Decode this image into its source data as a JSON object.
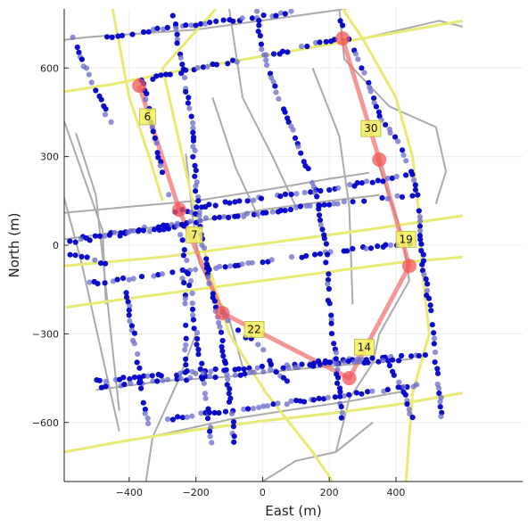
{
  "chart_data": {
    "type": "scatter",
    "title": "",
    "xlabel": "East (m)",
    "ylabel": "North (m)",
    "xlim": [
      -595,
      780
    ],
    "ylim": [
      -800,
      800
    ],
    "xticks": [
      -400,
      -200,
      0,
      200,
      400
    ],
    "yticks": [
      -600,
      -300,
      0,
      300,
      600
    ],
    "xtick_labels": [
      "−400",
      "−200",
      "0",
      "200",
      "400"
    ],
    "ytick_labels": [
      "−600",
      "−300",
      "0",
      "300",
      "600"
    ],
    "grid": true,
    "legend": "none",
    "colors": {
      "gray_road": "#aaaaaa",
      "yellow_road": "#e9ea73",
      "route": "#f26b6b",
      "waypoint": "#f25555",
      "point_dark": "#0000c8",
      "point_light": "#6a6ac8",
      "label_box": "#f5f05a"
    },
    "gray_roads": [
      [
        [
          -595,
          695
        ],
        [
          -520,
          705
        ],
        [
          -200,
          730
        ],
        [
          250,
          800
        ]
      ],
      [
        [
          -595,
          110
        ],
        [
          -400,
          130
        ],
        [
          -200,
          150
        ],
        [
          50,
          195
        ],
        [
          200,
          225
        ],
        [
          320,
          245
        ]
      ],
      [
        [
          -595,
          20
        ],
        [
          -400,
          50
        ],
        [
          -200,
          80
        ],
        [
          0,
          120
        ],
        [
          200,
          150
        ],
        [
          350,
          170
        ]
      ],
      [
        [
          -500,
          -490
        ],
        [
          -300,
          -460
        ],
        [
          -100,
          -445
        ],
        [
          100,
          -420
        ],
        [
          300,
          -400
        ],
        [
          450,
          -385
        ]
      ],
      [
        [
          -595,
          -700
        ],
        [
          -300,
          -640
        ],
        [
          -100,
          -590
        ],
        [
          100,
          -555
        ],
        [
          250,
          -530
        ],
        [
          420,
          -495
        ]
      ],
      [
        [
          -595,
          420
        ],
        [
          -480,
          50
        ],
        [
          -470,
          -200
        ]
      ],
      [
        [
          -560,
          380
        ],
        [
          -500,
          170
        ],
        [
          -430,
          -560
        ]
      ],
      [
        [
          -600,
          180
        ],
        [
          -545,
          -50
        ],
        [
          -430,
          -630
        ]
      ],
      [
        [
          -230,
          310
        ],
        [
          -210,
          100
        ],
        [
          -190,
          -60
        ],
        [
          -100,
          -250
        ],
        [
          -50,
          -450
        ]
      ],
      [
        [
          -100,
          800
        ],
        [
          -60,
          500
        ],
        [
          30,
          300
        ],
        [
          100,
          130
        ]
      ],
      [
        [
          0,
          -800
        ],
        [
          100,
          -730
        ],
        [
          220,
          -700
        ],
        [
          330,
          -600
        ]
      ],
      [
        [
          230,
          800
        ],
        [
          245,
          630
        ],
        [
          380,
          470
        ],
        [
          520,
          400
        ],
        [
          550,
          250
        ],
        [
          520,
          140
        ]
      ],
      [
        [
          220,
          -700
        ],
        [
          260,
          -520
        ],
        [
          330,
          -400
        ],
        [
          350,
          -300
        ]
      ],
      [
        [
          350,
          -300
        ],
        [
          440,
          -120
        ],
        [
          420,
          30
        ],
        [
          340,
          300
        ]
      ],
      [
        [
          -350,
          -800
        ],
        [
          -330,
          -650
        ],
        [
          -250,
          -450
        ],
        [
          -200,
          -300
        ]
      ],
      [
        [
          300,
          700
        ],
        [
          530,
          760
        ],
        [
          600,
          740
        ]
      ],
      [
        [
          -150,
          500
        ],
        [
          -80,
          260
        ],
        [
          -10,
          90
        ]
      ],
      [
        [
          150,
          600
        ],
        [
          230,
          370
        ],
        [
          260,
          130
        ],
        [
          270,
          -200
        ]
      ]
    ],
    "yellow_roads": [
      [
        [
          -595,
          520
        ],
        [
          -450,
          545
        ],
        [
          -300,
          580
        ],
        [
          -100,
          620
        ],
        [
          100,
          660
        ],
        [
          300,
          700
        ],
        [
          600,
          760
        ]
      ],
      [
        [
          -595,
          -70
        ],
        [
          -300,
          -40
        ],
        [
          -100,
          -10
        ],
        [
          100,
          20
        ],
        [
          300,
          50
        ],
        [
          600,
          100
        ]
      ],
      [
        [
          -590,
          -210
        ],
        [
          -400,
          -180
        ],
        [
          -200,
          -150
        ],
        [
          0,
          -120
        ],
        [
          200,
          -90
        ],
        [
          400,
          -60
        ],
        [
          600,
          -40
        ]
      ],
      [
        [
          -595,
          -700
        ],
        [
          -400,
          -660
        ],
        [
          -200,
          -625
        ],
        [
          0,
          -595
        ],
        [
          200,
          -570
        ],
        [
          400,
          -540
        ],
        [
          600,
          -500
        ]
      ],
      [
        [
          -140,
          800
        ],
        [
          -300,
          600
        ],
        [
          -220,
          200
        ],
        [
          -180,
          0
        ],
        [
          -100,
          -300
        ],
        [
          10,
          -500
        ],
        [
          150,
          -700
        ],
        [
          210,
          -800
        ]
      ],
      [
        [
          240,
          800
        ],
        [
          300,
          700
        ],
        [
          400,
          500
        ],
        [
          450,
          300
        ],
        [
          470,
          100
        ],
        [
          480,
          -100
        ],
        [
          500,
          -300
        ],
        [
          450,
          -500
        ],
        [
          430,
          -800
        ]
      ],
      [
        [
          -450,
          800
        ],
        [
          -400,
          500
        ],
        [
          -340,
          300
        ],
        [
          -300,
          150
        ]
      ]
    ],
    "point_tracks": [
      [
        [
          -480,
          700
        ],
        [
          -300,
          735
        ],
        [
          -100,
          760
        ],
        [
          100,
          790
        ]
      ],
      [
        [
          -360,
          560
        ],
        [
          -150,
          610
        ],
        [
          50,
          650
        ],
        [
          230,
          700
        ]
      ],
      [
        [
          -200,
          130
        ],
        [
          0,
          160
        ],
        [
          200,
          190
        ],
        [
          460,
          240
        ]
      ],
      [
        [
          -570,
          20
        ],
        [
          -400,
          50
        ],
        [
          -200,
          80
        ],
        [
          0,
          110
        ],
        [
          200,
          140
        ],
        [
          460,
          170
        ]
      ],
      [
        [
          -590,
          10
        ],
        [
          -400,
          40
        ],
        [
          -220,
          70
        ]
      ],
      [
        [
          -520,
          -130
        ],
        [
          -300,
          -100
        ],
        [
          -100,
          -70
        ],
        [
          100,
          -40
        ],
        [
          300,
          -10
        ],
        [
          460,
          10
        ]
      ],
      [
        [
          -500,
          -460
        ],
        [
          -300,
          -440
        ],
        [
          -100,
          -420
        ],
        [
          100,
          -400
        ],
        [
          300,
          -385
        ],
        [
          500,
          -370
        ]
      ],
      [
        [
          -300,
          -590
        ],
        [
          -100,
          -560
        ],
        [
          100,
          -530
        ],
        [
          300,
          -500
        ],
        [
          480,
          -470
        ]
      ],
      [
        [
          -500,
          -480
        ],
        [
          -300,
          -460
        ],
        [
          -100,
          -440
        ],
        [
          50,
          -420
        ],
        [
          200,
          -400
        ],
        [
          420,
          -390
        ]
      ],
      [
        [
          -270,
          780
        ],
        [
          -240,
          600
        ],
        [
          -210,
          400
        ],
        [
          -200,
          200
        ],
        [
          -190,
          80
        ],
        [
          -170,
          -60
        ],
        [
          -130,
          -260
        ],
        [
          -100,
          -500
        ],
        [
          -80,
          -700
        ]
      ],
      [
        [
          -360,
          560
        ],
        [
          -330,
          400
        ],
        [
          -300,
          250
        ],
        [
          -260,
          100
        ],
        [
          -220,
          -100
        ],
        [
          -200,
          -300
        ],
        [
          -170,
          -500
        ],
        [
          -150,
          -700
        ]
      ],
      [
        [
          -20,
          790
        ],
        [
          0,
          660
        ],
        [
          40,
          520
        ],
        [
          80,
          420
        ],
        [
          100,
          360
        ],
        [
          120,
          300
        ],
        [
          150,
          230
        ],
        [
          170,
          120
        ],
        [
          190,
          -10
        ],
        [
          200,
          -200
        ],
        [
          220,
          -400
        ],
        [
          240,
          -600
        ]
      ],
      [
        [
          220,
          790
        ],
        [
          270,
          680
        ],
        [
          300,
          600
        ],
        [
          330,
          500
        ],
        [
          360,
          420
        ],
        [
          420,
          320
        ],
        [
          440,
          270
        ],
        [
          460,
          200
        ],
        [
          470,
          100
        ],
        [
          480,
          -50
        ],
        [
          500,
          -200
        ],
        [
          520,
          -400
        ],
        [
          540,
          -600
        ]
      ],
      [
        [
          -590,
          -30
        ],
        [
          -500,
          -50
        ],
        [
          -460,
          -70
        ]
      ],
      [
        [
          -410,
          -160
        ],
        [
          -380,
          -350
        ],
        [
          -360,
          -500
        ],
        [
          -340,
          -620
        ]
      ],
      [
        [
          -570,
          700
        ],
        [
          -510,
          550
        ],
        [
          -450,
          400
        ]
      ],
      [
        [
          -240,
          -80
        ],
        [
          -230,
          -250
        ],
        [
          -230,
          -440
        ]
      ],
      [
        [
          380,
          -410
        ],
        [
          420,
          -480
        ],
        [
          450,
          -600
        ]
      ],
      [
        [
          -240,
          120
        ],
        [
          -200,
          110
        ],
        [
          -160,
          80
        ]
      ],
      [
        [
          -120,
          -230
        ],
        [
          -60,
          -300
        ],
        [
          0,
          -350
        ],
        [
          40,
          -430
        ],
        [
          80,
          -470
        ]
      ]
    ],
    "route": [
      [
        -370,
        540
      ],
      [
        -250,
        120
      ],
      [
        -120,
        -230
      ],
      [
        260,
        -450
      ],
      [
        440,
        -70
      ],
      [
        350,
        290
      ],
      [
        240,
        700
      ]
    ],
    "waypoints": [
      [
        -370,
        540
      ],
      [
        -250,
        120
      ],
      [
        -120,
        -230
      ],
      [
        260,
        -450
      ],
      [
        440,
        -70
      ],
      [
        350,
        290
      ],
      [
        240,
        700
      ]
    ],
    "route_labels": [
      {
        "text": "6",
        "x": -345,
        "y": 435
      },
      {
        "text": "7",
        "x": -205,
        "y": 35
      },
      {
        "text": "22",
        "x": -25,
        "y": -285
      },
      {
        "text": "14",
        "x": 305,
        "y": -345
      },
      {
        "text": "19",
        "x": 430,
        "y": 20
      },
      {
        "text": "30",
        "x": 325,
        "y": 395
      }
    ]
  }
}
